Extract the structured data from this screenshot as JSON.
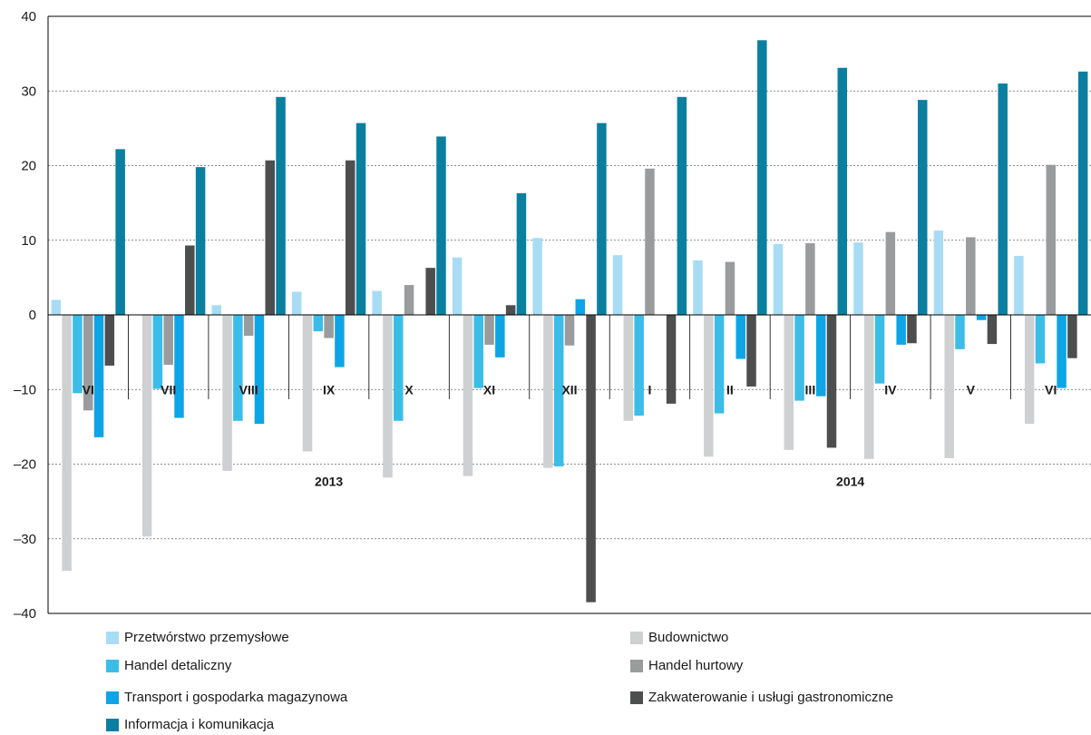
{
  "chart_data": {
    "type": "bar",
    "categories": [
      "VI",
      "VII",
      "VIII",
      "IX",
      "X",
      "XI",
      "XII",
      "I",
      "II",
      "III",
      "IV",
      "V",
      "VI"
    ],
    "year_groups": [
      {
        "label": "2013",
        "from": 0,
        "to": 6
      },
      {
        "label": "2014",
        "from": 7,
        "to": 12
      }
    ],
    "ylim": [
      -40,
      40
    ],
    "yticks": [
      -40,
      -30,
      -20,
      -10,
      0,
      10,
      20,
      30,
      40
    ],
    "ytick_labels": [
      "–40",
      "–30",
      "–20",
      "–10",
      "0",
      "10",
      "20",
      "30",
      "40"
    ],
    "grid": true,
    "legend_position": "bottom",
    "series": [
      {
        "name": "Przetwórstwo przemysłowe",
        "color": "#a8dcf5",
        "values": [
          2,
          0,
          1.3,
          3.1,
          3.2,
          7.7,
          10.3,
          8,
          7.3,
          9.5,
          9.7,
          11.3,
          7.9
        ]
      },
      {
        "name": "Budownictwo",
        "color": "#cfd0d2",
        "values": [
          -34.3,
          -29.7,
          -20.9,
          -18.3,
          -21.8,
          -21.6,
          -20.5,
          -14.2,
          -19,
          -18.1,
          -19.3,
          -19.2,
          -14.6
        ]
      },
      {
        "name": "Handel detaliczny",
        "color": "#3bbde8",
        "values": [
          -10.5,
          -9.9,
          -14.2,
          -2.2,
          -14.2,
          -9.8,
          -20.3,
          -13.5,
          -13.2,
          -11.5,
          -9.2,
          -4.6,
          -6.5
        ]
      },
      {
        "name": "Handel hurtowy",
        "color": "#9a9b9d",
        "values": [
          -12.8,
          -6.7,
          -2.8,
          -3.1,
          4,
          -4,
          -4.1,
          19.6,
          7.1,
          9.6,
          11.1,
          10.4,
          20.1
        ]
      },
      {
        "name": "Transport i gospodarka magazynowa",
        "color": "#0ea5e6",
        "values": [
          -16.4,
          -13.8,
          -14.6,
          -7,
          0,
          -5.7,
          2.1,
          0,
          -5.9,
          -10.9,
          -4,
          -0.7,
          -9.8
        ]
      },
      {
        "name": "Zakwaterowanie i usługi gastronomiczne",
        "color": "#4d4e50",
        "values": [
          -6.8,
          9.3,
          20.7,
          20.7,
          6.3,
          1.3,
          -38.5,
          -11.9,
          -9.6,
          -17.8,
          -3.8,
          -3.9,
          -5.8
        ]
      },
      {
        "name": "Informacja i komunikacja",
        "color": "#0a7fa0",
        "values": [
          22.2,
          19.8,
          29.2,
          25.7,
          23.9,
          16.3,
          25.7,
          29.2,
          36.8,
          33.1,
          28.8,
          31,
          32.6
        ]
      }
    ]
  }
}
